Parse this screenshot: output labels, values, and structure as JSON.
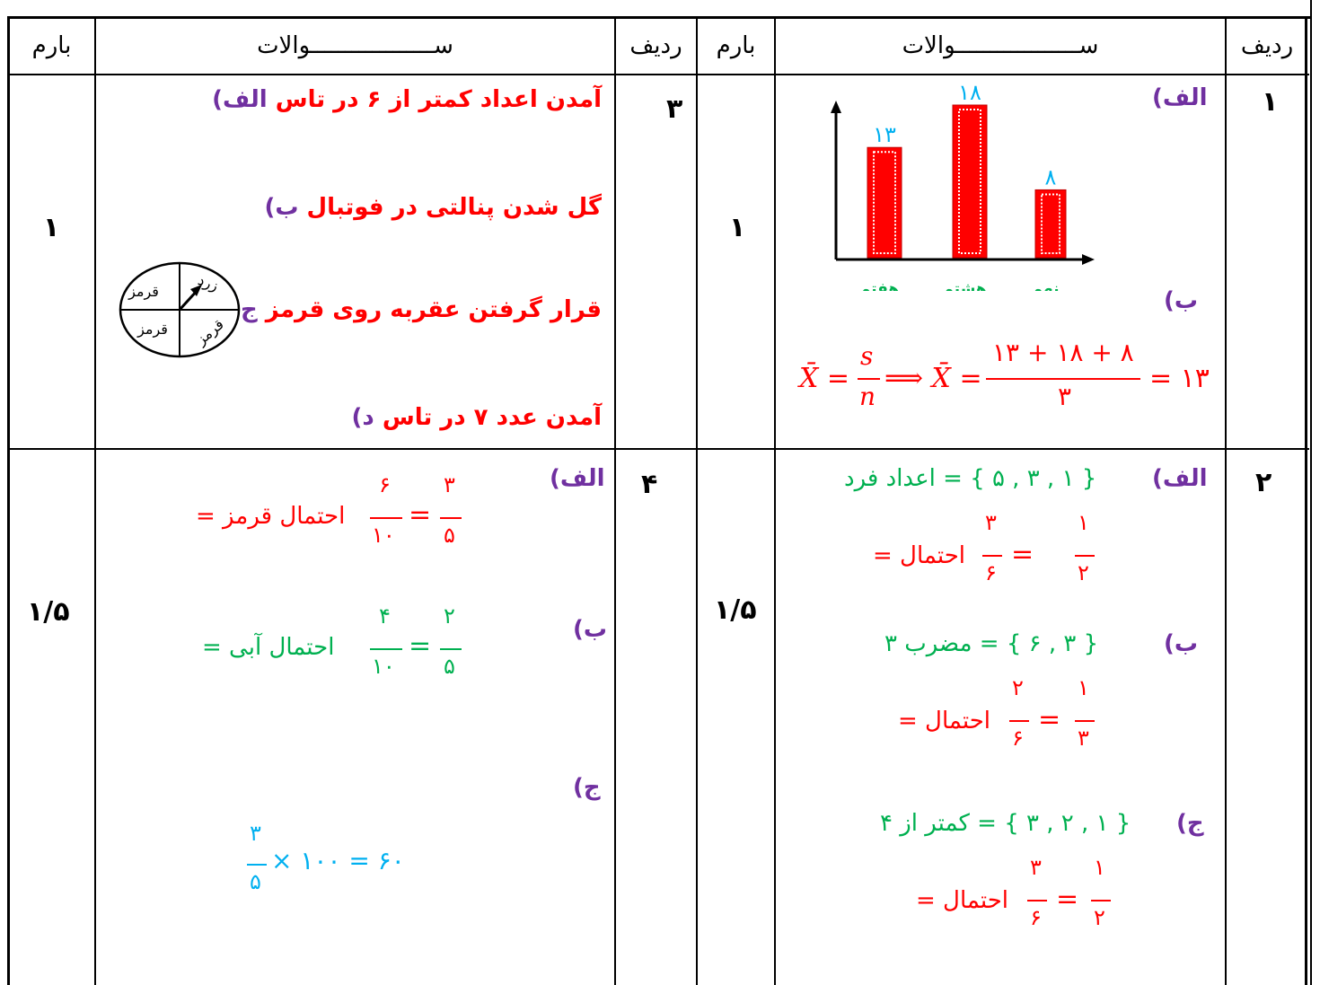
{
  "table": {
    "headers": {
      "score": "بارم",
      "questions": "ســــــــــــــــــوالات",
      "row": "ردیف"
    },
    "right": {
      "row1": {
        "row_number": "۱",
        "score": "۱",
        "a_label": "الف)",
        "b_label": "ب)",
        "formula_left": "X̄ =",
        "formula_s": "s",
        "formula_n": "n",
        "formula_mid": "⟹ X̄ =",
        "formula_num": "۱۳ + ۱۸ + ۸",
        "formula_den": "۳",
        "formula_res": "= ۱۳"
      },
      "row2": {
        "row_number": "۲",
        "score": "۱/۵",
        "a_label": "الف)",
        "a_set": "{ ۱ , ۳ , ۵ } = اعداد فرد",
        "a_prob_label": "احتمال =",
        "a_f1_num": "۳",
        "a_f1_den": "۶",
        "a_f2_num": "۱",
        "a_f2_den": "۲",
        "b_label": "ب)",
        "b_set": "{ ۳ , ۶ } = مضرب ۳",
        "b_prob_label": "احتمال =",
        "b_f1_num": "۲",
        "b_f1_den": "۶",
        "b_f2_num": "۱",
        "b_f2_den": "۳",
        "c_label": "ج)",
        "c_set": "{ ۱ , ۲ , ۳ } = کمتر از ۴",
        "c_prob_label": "احتمال =",
        "c_f1_num": "۳",
        "c_f1_den": "۶",
        "c_f2_num": "۱",
        "c_f2_den": "۲"
      }
    },
    "left": {
      "row3": {
        "row_number": "۳",
        "score": "۱",
        "a_label": "الف)",
        "a_text": "آمدن اعداد کمتر از ۶ در تاس",
        "b_label": "ب)",
        "b_text": "گل شدن پنالتی در فوتبال",
        "c_label": "ج)",
        "c_text": "قرار گرفتن عقربه روی قرمز",
        "d_label": "د)",
        "d_text": "آمدن عدد ۷ در تاس",
        "spinner": {
          "top_left": "قرمز",
          "top_right": "زرد",
          "bottom_left": "قرمز",
          "bottom_right": "قرمز"
        }
      },
      "row4": {
        "row_number": "۴",
        "score": "۱/۵",
        "a_label": "الف)",
        "a_prob_label": "احتمال قرمز =",
        "a_f1_num": "۶",
        "a_f1_den": "۱۰",
        "a_f2_num": "۳",
        "a_f2_den": "۵",
        "b_label": "ب)",
        "b_prob_label": "احتمال آبی =",
        "b_f1_num": "۴",
        "b_f1_den": "۱۰",
        "b_f2_num": "۲",
        "b_f2_den": "۵",
        "c_label": "ج)",
        "c_num": "۳",
        "c_den": "۵",
        "c_rest": "× ۱۰۰ = ۶۰"
      }
    }
  },
  "chart_data": {
    "type": "bar",
    "categories": [
      "هفتم",
      "هشتم",
      "نهم"
    ],
    "values": [
      13,
      18,
      8
    ],
    "data_labels": [
      "۱۳",
      "۱۸",
      "۸"
    ],
    "bar_color": "#ff0000",
    "label_color": "#00b0f0",
    "category_color": "#00b050"
  }
}
